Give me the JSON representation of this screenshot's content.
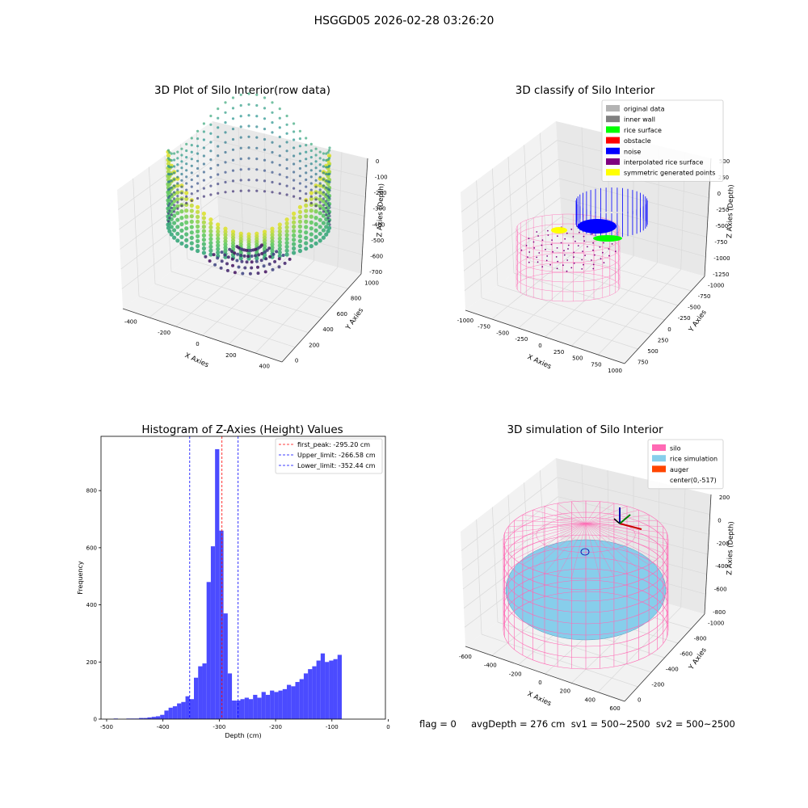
{
  "figure_title": "HSGGD05 2026-02-28 03:26:20",
  "footer": {
    "text": "flag = 0     avgDepth = 276 cm  sv1 = 500~2500  sv2 = 500~2500"
  },
  "colors": {
    "hist_bar": "#4b4bff",
    "first_peak": "#ff0000",
    "limit": "#0000ff",
    "silo": "#ff69b4",
    "rice_simulation": "#87ceeb",
    "auger": "#ff4500"
  },
  "chart_data": [
    {
      "type": "scatter",
      "id": "raw",
      "title": "3D Plot of Silo Interior(row data)",
      "xlabel": "X Axies",
      "ylabel": "Y Axies",
      "zlabel": "Z Axies (Depth)",
      "x_ticks": [
        "-400",
        "-200",
        "0",
        "200",
        "400"
      ],
      "y_ticks": [
        "0",
        "200",
        "400",
        "600",
        "800",
        "1000"
      ],
      "z_ticks": [
        "0",
        "-100",
        "-200",
        "-300",
        "-400",
        "-500",
        "-600",
        "-700"
      ],
      "colormap": "viridis"
    },
    {
      "type": "scatter",
      "id": "classify",
      "title": "3D classify of Silo Interior",
      "xlabel": "X Axies",
      "ylabel": "Y Axies",
      "zlabel": "Z Axies (Depth)",
      "x_ticks": [
        "-1000",
        "-750",
        "-500",
        "-250",
        "0",
        "250",
        "500",
        "750",
        "1000"
      ],
      "y_ticks": [
        "750",
        "500",
        "250",
        "0",
        "-250",
        "-500",
        "-750",
        "-1000"
      ],
      "z_ticks": [
        "500",
        "250",
        "0",
        "-250",
        "-500",
        "-750",
        "-1000",
        "-1250"
      ],
      "legend": [
        {
          "label": "original data",
          "color": "#b3b3b3"
        },
        {
          "label": "inner wall",
          "color": "#808080"
        },
        {
          "label": "rice surface",
          "color": "#00ff00"
        },
        {
          "label": "obstacle",
          "color": "#ff0000"
        },
        {
          "label": "noise",
          "color": "#0000ff"
        },
        {
          "label": "interpolated rice surface",
          "color": "#800080"
        },
        {
          "label": "symmetric generated points",
          "color": "#ffff00"
        }
      ]
    },
    {
      "type": "bar",
      "id": "histogram",
      "title": "Histogram of Z-Axies (Height) Values",
      "xlabel": "Depth (cm)",
      "ylabel": "Frequency",
      "xlim": [
        -510,
        -5
      ],
      "ylim": [
        0,
        990
      ],
      "x_ticks": [
        -500,
        -400,
        -300,
        -200,
        -100,
        0
      ],
      "y_ticks": [
        0,
        200,
        400,
        600,
        800
      ],
      "bin_width": 7.5,
      "bins": [
        [
          -487.5,
          2
        ],
        [
          -480,
          0
        ],
        [
          -472.5,
          0
        ],
        [
          -465,
          2
        ],
        [
          -457.5,
          2
        ],
        [
          -450,
          2
        ],
        [
          -442.5,
          4
        ],
        [
          -435,
          4
        ],
        [
          -427.5,
          6
        ],
        [
          -420,
          8
        ],
        [
          -412.5,
          10
        ],
        [
          -405,
          15
        ],
        [
          -397.5,
          30
        ],
        [
          -390,
          40
        ],
        [
          -382.5,
          45
        ],
        [
          -375,
          55
        ],
        [
          -367.5,
          60
        ],
        [
          -360,
          80
        ],
        [
          -352.5,
          70
        ],
        [
          -345,
          145
        ],
        [
          -337.5,
          185
        ],
        [
          -330,
          195
        ],
        [
          -322.5,
          480
        ],
        [
          -315,
          605
        ],
        [
          -307.5,
          945
        ],
        [
          -300,
          660
        ],
        [
          -292.5,
          370
        ],
        [
          -285,
          160
        ],
        [
          -277.5,
          65
        ],
        [
          -270,
          65
        ],
        [
          -262.5,
          70
        ],
        [
          -255,
          75
        ],
        [
          -247.5,
          70
        ],
        [
          -240,
          85
        ],
        [
          -232.5,
          75
        ],
        [
          -225,
          95
        ],
        [
          -217.5,
          85
        ],
        [
          -210,
          100
        ],
        [
          -202.5,
          95
        ],
        [
          -195,
          100
        ],
        [
          -187.5,
          105
        ],
        [
          -180,
          120
        ],
        [
          -172.5,
          115
        ],
        [
          -165,
          130
        ],
        [
          -157.5,
          140
        ],
        [
          -150,
          160
        ],
        [
          -142.5,
          175
        ],
        [
          -135,
          185
        ],
        [
          -127.5,
          205
        ],
        [
          -120,
          230
        ],
        [
          -112.5,
          200
        ],
        [
          -105,
          205
        ],
        [
          -97.5,
          210
        ],
        [
          -90,
          225
        ]
      ],
      "vlines": [
        {
          "label": "first_peak: -295.20 cm",
          "x": -295.2,
          "color": "#ff0000"
        },
        {
          "label": "Upper_limit: -266.58 cm",
          "x": -266.58,
          "color": "#0000ff"
        },
        {
          "label": "Lower_limit: -352.44 cm",
          "x": -352.44,
          "color": "#0000ff"
        }
      ]
    },
    {
      "type": "scatter",
      "id": "simulation",
      "title": "3D simulation of Silo Interior",
      "xlabel": "X Axies",
      "ylabel": "Y Axies",
      "zlabel": "Z Axies (Depth)",
      "x_ticks": [
        "-600",
        "-400",
        "-200",
        "0",
        "200",
        "400",
        "600"
      ],
      "y_ticks": [
        "0",
        "-200",
        "-400",
        "-600",
        "-800",
        "-1000"
      ],
      "z_ticks": [
        "200",
        "0",
        "-200",
        "-400",
        "-600",
        "-800"
      ],
      "legend": [
        {
          "label": "silo",
          "color": "#ff69b4"
        },
        {
          "label": "rice simulation",
          "color": "#87ceeb"
        },
        {
          "label": "auger",
          "color": "#ff4500"
        },
        {
          "label": "center(0,-517)",
          "color": ""
        }
      ]
    }
  ]
}
